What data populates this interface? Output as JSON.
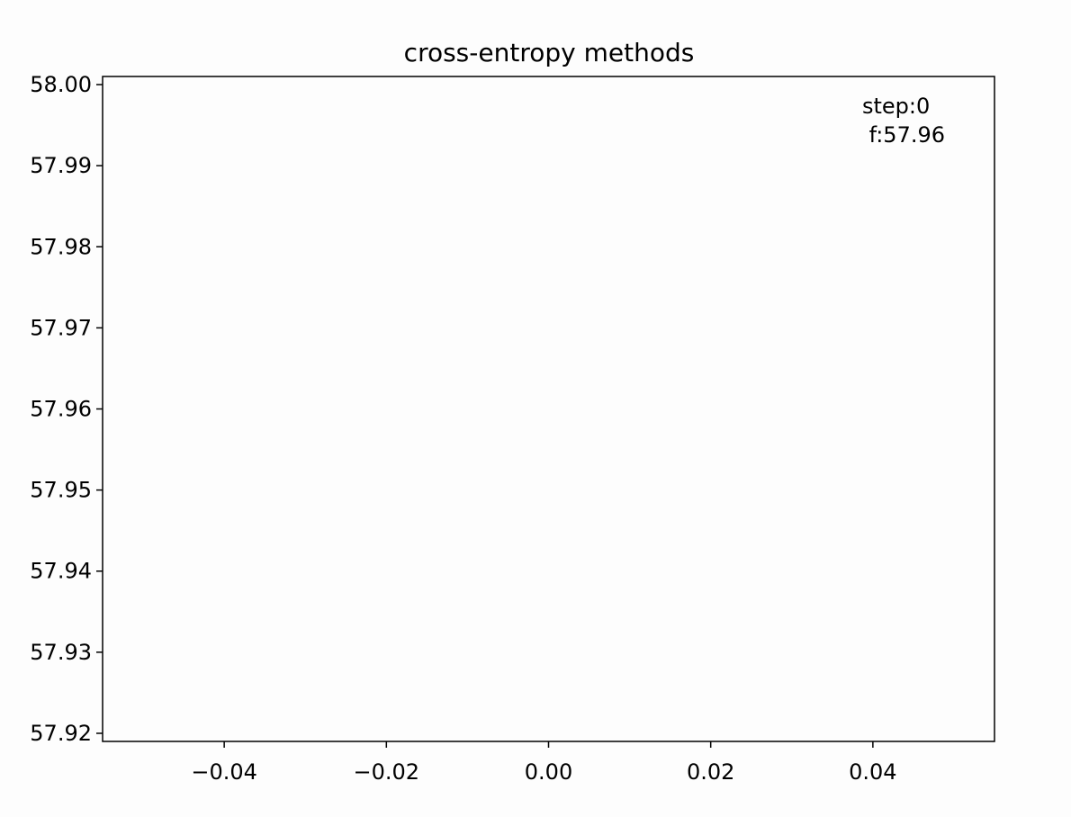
{
  "chart_data": {
    "type": "scatter",
    "title": "cross-entropy methods",
    "xlabel": "",
    "ylabel": "",
    "xlim": [
      -0.055,
      0.055
    ],
    "ylim": [
      57.919,
      58.001
    ],
    "x_ticks": [
      "−0.04",
      "−0.02",
      "0.00",
      "0.02",
      "0.04"
    ],
    "x_tick_values": [
      -0.04,
      -0.02,
      0.0,
      0.02,
      0.04
    ],
    "y_ticks": [
      "57.92",
      "57.93",
      "57.94",
      "57.95",
      "57.96",
      "57.97",
      "57.98",
      "57.99",
      "58.00"
    ],
    "y_tick_values": [
      57.92,
      57.93,
      57.94,
      57.95,
      57.96,
      57.97,
      57.98,
      57.99,
      58.0
    ],
    "series": [],
    "annotation": {
      "line1": "step:0",
      "line2": " f:57.96"
    },
    "grid": false,
    "legend": "none",
    "colors": {
      "background": "#fdfdfd",
      "axes": "#000000",
      "text": "#000000"
    }
  }
}
